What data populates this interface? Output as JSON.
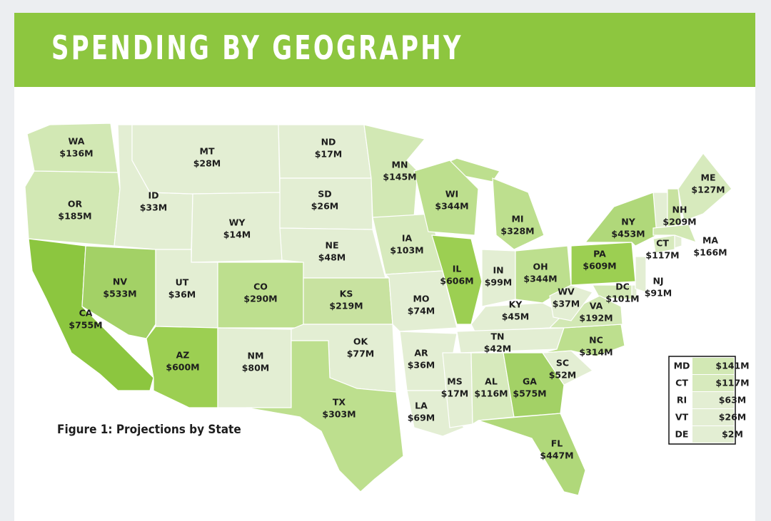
{
  "header": {
    "title": "SPENDING BY GEOGRAPHY"
  },
  "map": {
    "caption": "Figure 1: Projections by State",
    "states": [
      {
        "code": "WA",
        "amount": "$136M",
        "color": "#d2e8b4"
      },
      {
        "code": "OR",
        "amount": "$185M",
        "color": "#d2e8b4"
      },
      {
        "code": "CA",
        "amount": "$755M",
        "color": "#8cc63f"
      },
      {
        "code": "NV",
        "amount": "$533M",
        "color": "#a3d166"
      },
      {
        "code": "ID",
        "amount": "$33M",
        "color": "#e3eed3"
      },
      {
        "code": "MT",
        "amount": "$28M",
        "color": "#e3eed3"
      },
      {
        "code": "WY",
        "amount": "$14M",
        "color": "#e3eed3"
      },
      {
        "code": "UT",
        "amount": "$36M",
        "color": "#e3eed3"
      },
      {
        "code": "AZ",
        "amount": "$600M",
        "color": "#9ccf52"
      },
      {
        "code": "CO",
        "amount": "$290M",
        "color": "#bddf8e"
      },
      {
        "code": "NM",
        "amount": "$80M",
        "color": "#e3eed3"
      },
      {
        "code": "ND",
        "amount": "$17M",
        "color": "#e3eed3"
      },
      {
        "code": "SD",
        "amount": "$26M",
        "color": "#e3eed3"
      },
      {
        "code": "NE",
        "amount": "$48M",
        "color": "#e3eed3"
      },
      {
        "code": "KS",
        "amount": "$219M",
        "color": "#c8e2a0"
      },
      {
        "code": "OK",
        "amount": "$77M",
        "color": "#e3eed3"
      },
      {
        "code": "TX",
        "amount": "$303M",
        "color": "#bddf8e"
      },
      {
        "code": "MN",
        "amount": "$145M",
        "color": "#d2e8b4"
      },
      {
        "code": "IA",
        "amount": "$103M",
        "color": "#d7eabd"
      },
      {
        "code": "MO",
        "amount": "$74M",
        "color": "#e3eed3"
      },
      {
        "code": "AR",
        "amount": "$36M",
        "color": "#e3eed3"
      },
      {
        "code": "LA",
        "amount": "$69M",
        "color": "#e3eed3"
      },
      {
        "code": "WI",
        "amount": "$344M",
        "color": "#bddf8e"
      },
      {
        "code": "IL",
        "amount": "$606M",
        "color": "#9ccf52"
      },
      {
        "code": "MI",
        "amount": "$328M",
        "color": "#bddf8e"
      },
      {
        "code": "IN",
        "amount": "$99M",
        "color": "#e3eed3"
      },
      {
        "code": "OH",
        "amount": "$344M",
        "color": "#bddf8e"
      },
      {
        "code": "KY",
        "amount": "$45M",
        "color": "#e3eed3"
      },
      {
        "code": "TN",
        "amount": "$42M",
        "color": "#e3eed3"
      },
      {
        "code": "MS",
        "amount": "$17M",
        "color": "#e3eed3"
      },
      {
        "code": "AL",
        "amount": "$116M",
        "color": "#d7eabd"
      },
      {
        "code": "GA",
        "amount": "$575M",
        "color": "#a3d166"
      },
      {
        "code": "SC",
        "amount": "$52M",
        "color": "#e3eed3"
      },
      {
        "code": "FL",
        "amount": "$447M",
        "color": "#b0d87a"
      },
      {
        "code": "NC",
        "amount": "$314M",
        "color": "#bddf8e"
      },
      {
        "code": "VA",
        "amount": "$192M",
        "color": "#d2e8b4"
      },
      {
        "code": "WV",
        "amount": "$37M",
        "color": "#e3eed3"
      },
      {
        "code": "DC",
        "amount": "$101M",
        "color": "#d7eabd"
      },
      {
        "code": "NJ",
        "amount": "$91M",
        "color": "#e3eed3"
      },
      {
        "code": "PA",
        "amount": "$609M",
        "color": "#9ccf52"
      },
      {
        "code": "NY",
        "amount": "$453M",
        "color": "#b0d87a"
      },
      {
        "code": "CT",
        "amount": "$117M",
        "color": "#d7eabd"
      },
      {
        "code": "NH",
        "amount": "$209M",
        "color": "#c8e2a0"
      },
      {
        "code": "MA",
        "amount": "$166M",
        "color": "#d2e8b4"
      },
      {
        "code": "ME",
        "amount": "$127M",
        "color": "#d7eabd"
      }
    ],
    "inset_table": {
      "rows": [
        {
          "code": "MD",
          "amount": "$141M",
          "color": "#d2e8b4"
        },
        {
          "code": "CT",
          "amount": "$117M",
          "color": "#d7eabd"
        },
        {
          "code": "RI",
          "amount": "$63M",
          "color": "#e3eed3"
        },
        {
          "code": "VT",
          "amount": "$26M",
          "color": "#e3eed3"
        },
        {
          "code": "DE",
          "amount": "$2M",
          "color": "#e3eed3"
        }
      ]
    }
  }
}
